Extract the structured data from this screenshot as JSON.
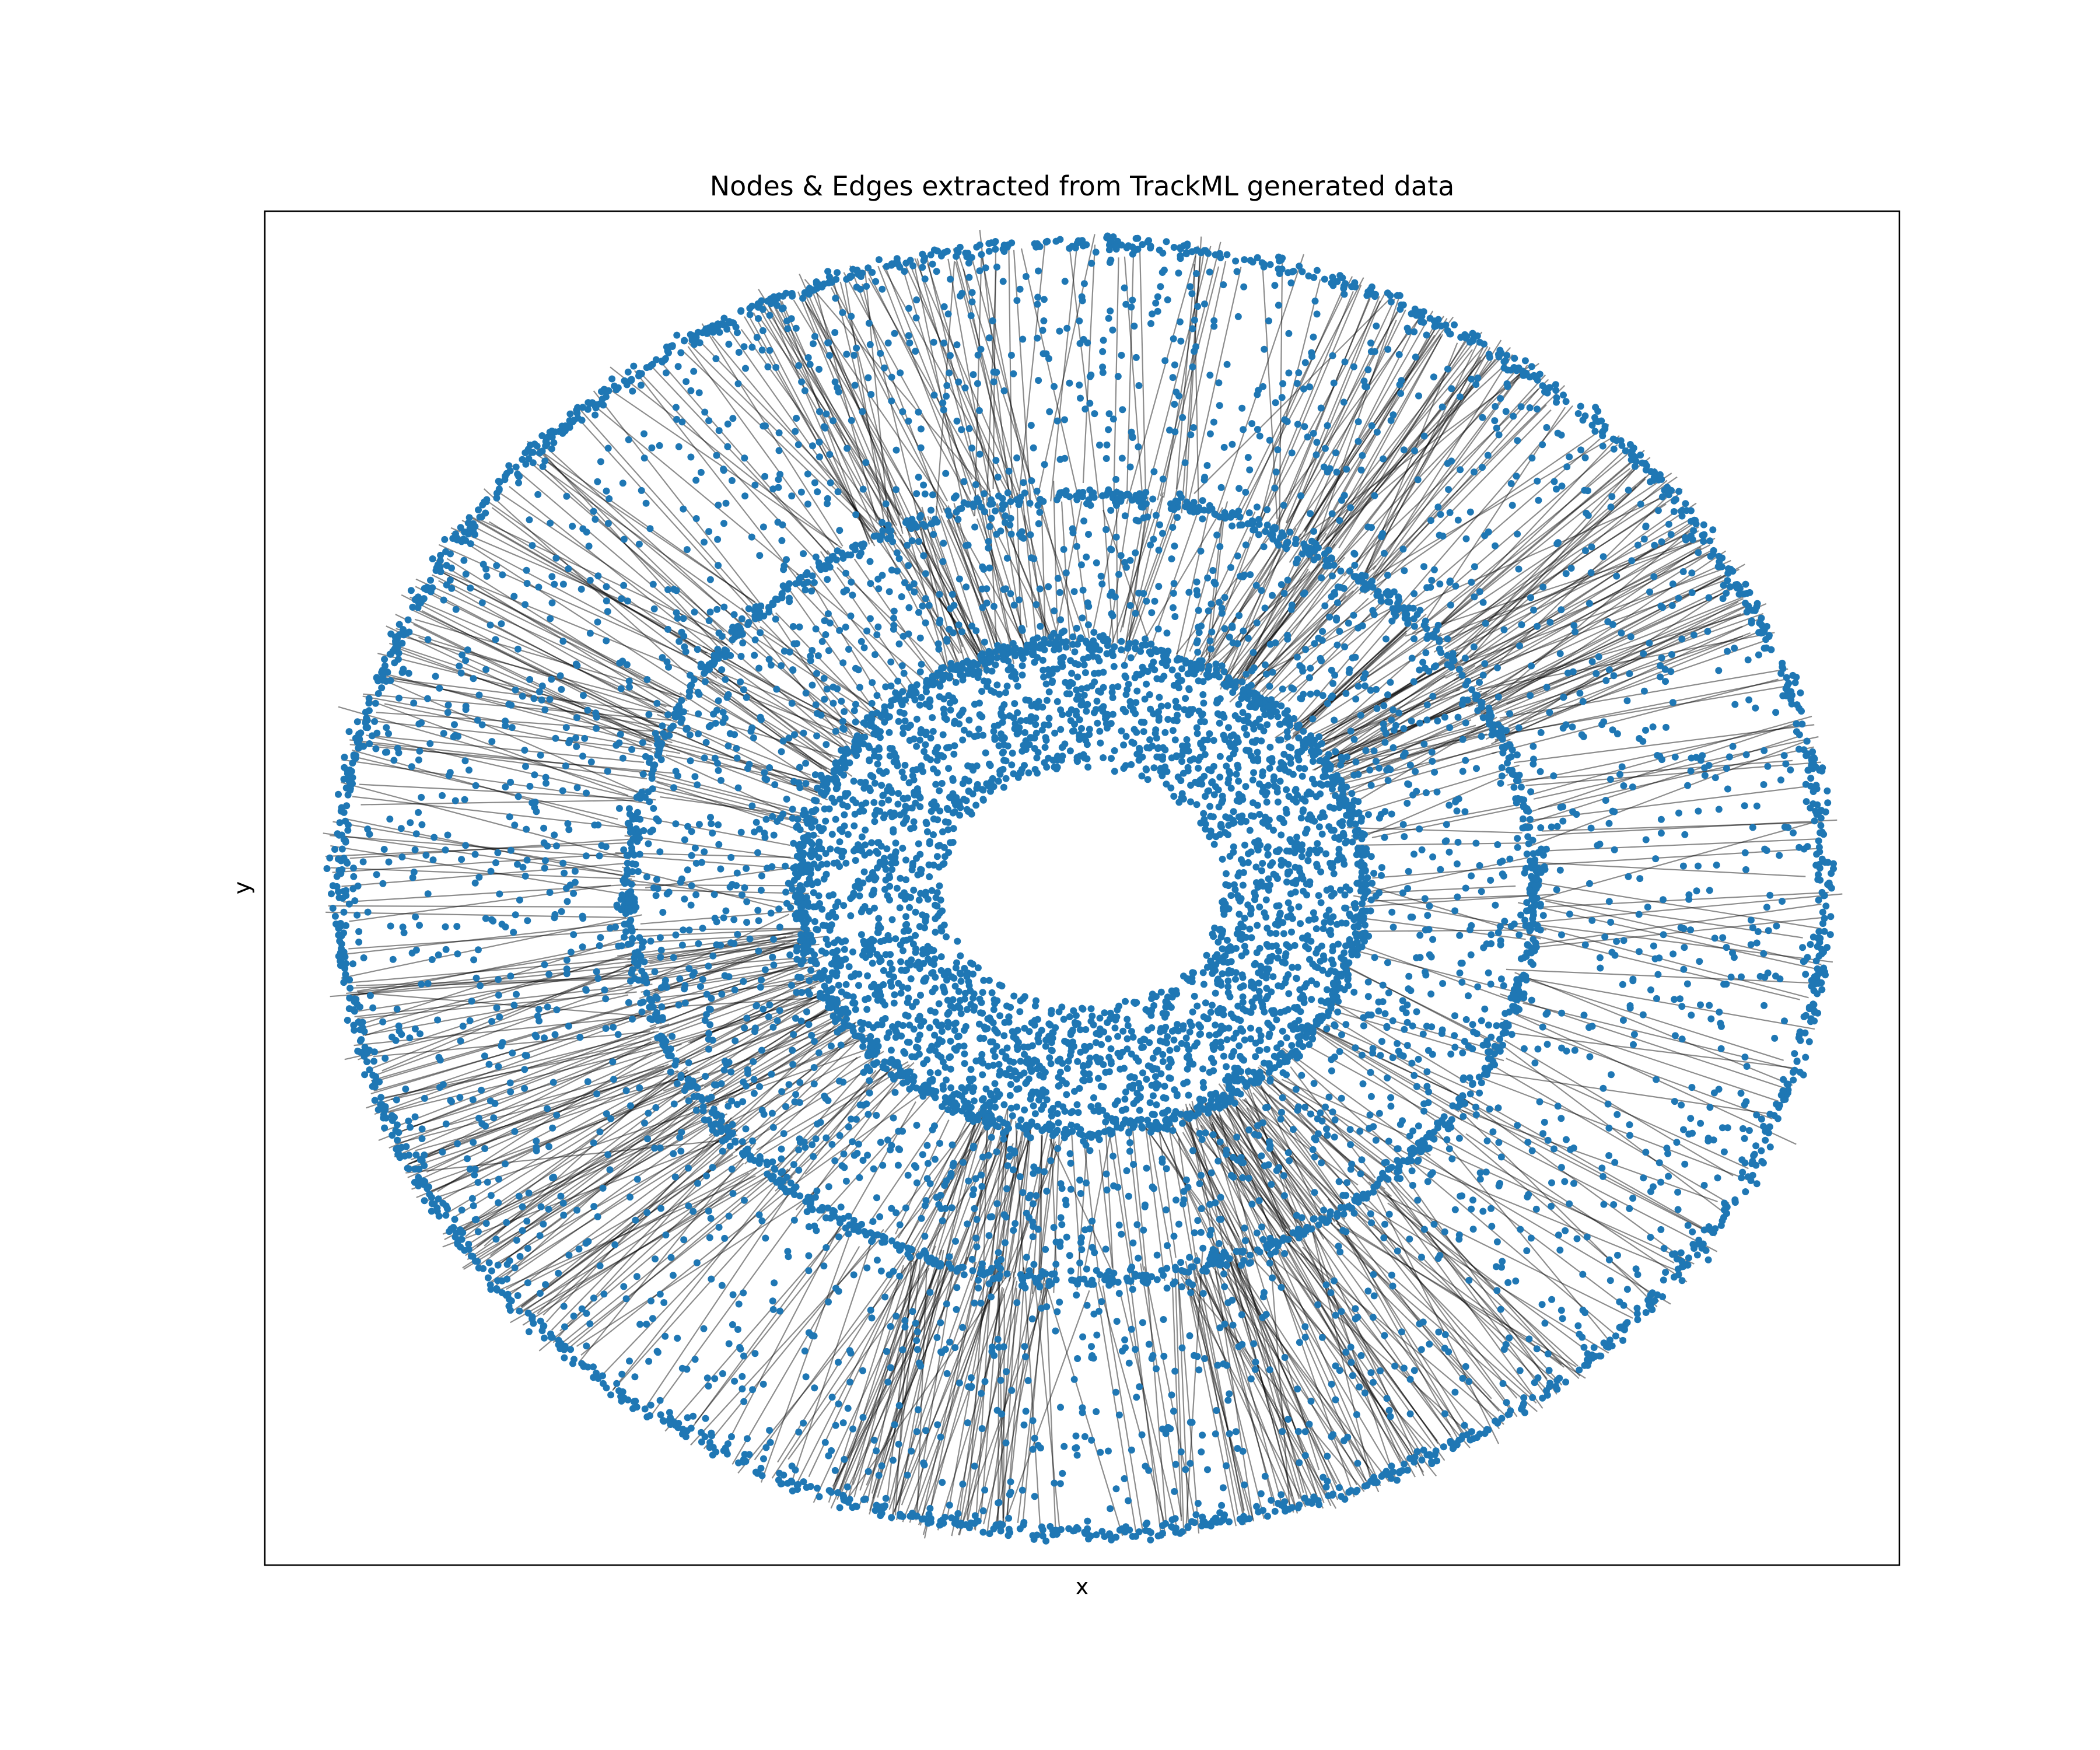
{
  "chart_data": {
    "type": "scatter",
    "title": "Nodes & Edges extracted from TrackML generated data",
    "xlabel": "x",
    "ylabel": "y",
    "xticks": [],
    "yticks": [],
    "xlim": [
      -1100,
      1100
    ],
    "ylim": [
      -1050,
      1050
    ],
    "grid": false,
    "legend": "none",
    "colors": {
      "nodes": "#1f77b4",
      "edges": "#000000",
      "frame": "#000000"
    },
    "series": [
      {
        "role": "nodes",
        "layers": [
          {
            "kind": "ring",
            "radius": 1000,
            "count": 1500
          },
          {
            "kind": "ring",
            "radius": 610,
            "count": 1100
          },
          {
            "kind": "ring",
            "radius": 380,
            "count": 800
          },
          {
            "kind": "band",
            "r_min": 610,
            "r_max": 1000,
            "count": 2200
          },
          {
            "kind": "band",
            "r_min": 380,
            "r_max": 610,
            "count": 1500
          },
          {
            "kind": "band",
            "r_min": 185,
            "r_max": 380,
            "count": 2600
          }
        ]
      },
      {
        "role": "edges",
        "segments": [
          {
            "r_from": 380,
            "r_to": 610,
            "count": 520
          },
          {
            "r_from": 610,
            "r_to": 1000,
            "count": 720
          }
        ],
        "dense_sectors_deg": [
          {
            "from": -78,
            "to": -48,
            "weight": 5
          },
          {
            "from": -112,
            "to": -94,
            "weight": 3
          },
          {
            "from": 22,
            "to": 42,
            "weight": 3
          },
          {
            "from": 50,
            "to": 66,
            "weight": 3
          },
          {
            "from": 188,
            "to": 230,
            "weight": 4
          },
          {
            "from": 140,
            "to": 165,
            "weight": 2
          },
          {
            "from": 94,
            "to": 118,
            "weight": 2
          }
        ]
      }
    ]
  }
}
